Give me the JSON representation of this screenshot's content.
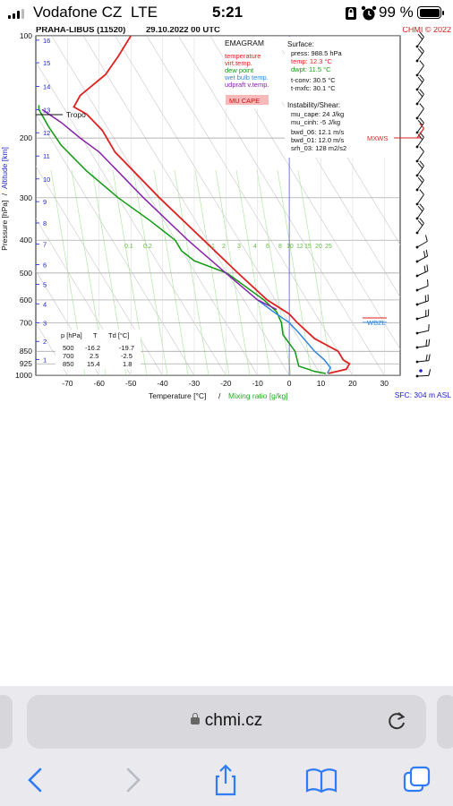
{
  "status_bar": {
    "carrier": "Vodafone CZ",
    "network": "LTE",
    "time": "5:21",
    "battery_pct": "99 %"
  },
  "chart_data": {
    "type": "line",
    "title": "PRAHA-LIBUS (11520)",
    "date": "29.10.2022 00 UTC",
    "copyright": "CHMI © 2022",
    "xlabel": "Temperature [°C]",
    "xlabel_sep": "/",
    "xlabel2": "Mixing ratio [g/kg]",
    "ylabel": "Pressure [hPa]",
    "ylabel_sep": "/",
    "ylabel2": "Altitude [km]",
    "x_ticks": [
      "-70",
      "-60",
      "-50",
      "-40",
      "-30",
      "-20",
      "-10",
      "0",
      "10",
      "20",
      "30"
    ],
    "x_tick_values": [
      -70,
      -60,
      -50,
      -40,
      -30,
      -20,
      -10,
      0,
      10,
      20,
      30
    ],
    "xlim": [
      -80,
      35
    ],
    "y_ticks": [
      "100",
      "200",
      "300",
      "400",
      "500",
      "600",
      "700",
      "850",
      "925",
      "1000"
    ],
    "y_tick_values": [
      100,
      200,
      300,
      400,
      500,
      600,
      700,
      850,
      925,
      1000
    ],
    "ylim": [
      1000,
      100
    ],
    "y_scale": "log",
    "altitude_ticks": [
      "1",
      "2",
      "3",
      "4",
      "5",
      "6",
      "7",
      "8",
      "9",
      "10",
      "11",
      "12",
      "13",
      "14",
      "15",
      "16"
    ],
    "mixing_ratio_labels": [
      "0.1",
      "0.2",
      "1",
      "2",
      "3",
      "4",
      "6",
      "8",
      "10",
      "12",
      "15",
      "20",
      "25"
    ],
    "tropo_label": "Tropo",
    "legend": {
      "title": "EMAGRAM",
      "items": [
        {
          "label": "temperature",
          "color": "#dd2222"
        },
        {
          "label": "virt.temp.",
          "color": "#dd2222"
        },
        {
          "label": "dew point",
          "color": "#119911"
        },
        {
          "label": "wet bulb temp.",
          "color": "#3388dd"
        },
        {
          "label": "udpraft v.temp.",
          "color": "#8822aa"
        }
      ],
      "badge": "MU CAPE"
    },
    "surface": {
      "heading": "Surface:",
      "press": "press: 988.5 hPa",
      "temp": "temp: 12.3 °C",
      "dwpt": "dwpt: 11.5 °C",
      "tconv": "t-conv: 30.5 °C",
      "tmxfc": "t-mxfc: 30.1 °C"
    },
    "instability": {
      "heading": "Instability/Shear:",
      "mu_cape": "mu_cape: 24 J/kg",
      "mu_cinh": "mu_cinh: -5 J/kg",
      "bwd_06": "bwd_06: 12.1 m/s",
      "bwd_01": "bwd_01: 12.0 m/s",
      "srh_03": "srh_03: 128 m2/s2"
    },
    "level_table": {
      "headers": [
        "p [hPa]",
        "T",
        "Td [°C]"
      ],
      "rows": [
        [
          "500",
          "-16.2",
          "-19.7"
        ],
        [
          "700",
          "2.5",
          "-2.5"
        ],
        [
          "850",
          "15.4",
          "1.8"
        ]
      ]
    },
    "markers": {
      "mxws": "MXWS",
      "wbzl": "WBZL"
    },
    "sfc": "SFC: 304 m ASL",
    "series": [
      {
        "name": "temperature",
        "color": "#dd2222",
        "points": [
          [
            12.3,
            988
          ],
          [
            18,
            960
          ],
          [
            19,
            925
          ],
          [
            17,
            900
          ],
          [
            15.4,
            850
          ],
          [
            8,
            780
          ],
          [
            2.5,
            700
          ],
          [
            0,
            660
          ],
          [
            -7,
            600
          ],
          [
            -16.2,
            500
          ],
          [
            -27,
            400
          ],
          [
            -41,
            300
          ],
          [
            -55,
            220
          ],
          [
            -59,
            190
          ],
          [
            -64,
            170
          ],
          [
            -68,
            162
          ],
          [
            -66,
            150
          ],
          [
            -58,
            130
          ],
          [
            -54,
            115
          ],
          [
            -50,
            100
          ]
        ]
      },
      {
        "name": "dew point",
        "color": "#119911",
        "points": [
          [
            11.5,
            988
          ],
          [
            8,
            975
          ],
          [
            6,
            960
          ],
          [
            3,
            940
          ],
          [
            1.8,
            850
          ],
          [
            -2,
            760
          ],
          [
            -2.5,
            700
          ],
          [
            -4,
            650
          ],
          [
            -8,
            600
          ],
          [
            -19.7,
            500
          ],
          [
            -30,
            460
          ],
          [
            -34,
            430
          ],
          [
            -36,
            400
          ],
          [
            -44,
            350
          ],
          [
            -54,
            300
          ],
          [
            -64,
            250
          ],
          [
            -72,
            210
          ],
          [
            -76,
            185
          ],
          [
            -79,
            165
          ],
          [
            -79,
            160
          ]
        ]
      },
      {
        "name": "wet bulb temp.",
        "color": "#3388dd",
        "points": [
          [
            12,
            988
          ],
          [
            13,
            950
          ],
          [
            11,
            900
          ],
          [
            8,
            850
          ],
          [
            3,
            750
          ],
          [
            0,
            700
          ],
          [
            -5,
            650
          ],
          [
            -10,
            600
          ]
        ]
      },
      {
        "name": "udpraft v.temp.",
        "color": "#8822aa",
        "points": [
          [
            -4,
            640
          ],
          [
            -10,
            600
          ],
          [
            -20,
            500
          ],
          [
            -32,
            400
          ],
          [
            -46,
            300
          ],
          [
            -60,
            220
          ],
          [
            -66,
            200
          ],
          [
            -72,
            180
          ],
          [
            -78,
            165
          ]
        ]
      }
    ]
  },
  "browser": {
    "url": "chmi.cz"
  }
}
